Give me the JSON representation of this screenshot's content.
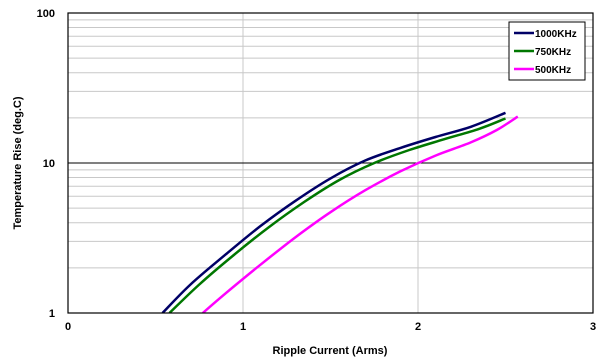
{
  "chart_data": {
    "type": "line",
    "title": "",
    "xlabel": "Ripple Current (Arms)",
    "ylabel": "Temperature Rise (deg.C)",
    "xlim": [
      0,
      3
    ],
    "ylim": [
      1,
      100
    ],
    "yscale": "log",
    "grid": true,
    "legend_position": "top-right",
    "x_ticks": [
      "0",
      "1",
      "2",
      "3"
    ],
    "y_ticks": [
      "1",
      "10",
      "100"
    ],
    "series": [
      {
        "name": "1000KHz",
        "color": "#000066",
        "points": [
          [
            0.54,
            1.0
          ],
          [
            0.7,
            1.55
          ],
          [
            0.9,
            2.45
          ],
          [
            1.1,
            3.8
          ],
          [
            1.3,
            5.6
          ],
          [
            1.5,
            7.9
          ],
          [
            1.7,
            10.4
          ],
          [
            1.9,
            12.6
          ],
          [
            2.1,
            14.9
          ],
          [
            2.3,
            17.4
          ],
          [
            2.5,
            21.6
          ]
        ]
      },
      {
        "name": "750KHz",
        "color": "#007700",
        "points": [
          [
            0.58,
            1.0
          ],
          [
            0.75,
            1.55
          ],
          [
            0.95,
            2.45
          ],
          [
            1.15,
            3.75
          ],
          [
            1.35,
            5.5
          ],
          [
            1.55,
            7.7
          ],
          [
            1.75,
            10.0
          ],
          [
            1.95,
            12.2
          ],
          [
            2.15,
            14.4
          ],
          [
            2.35,
            16.9
          ],
          [
            2.5,
            19.8
          ]
        ]
      },
      {
        "name": "500KHz",
        "color": "#ff00ff",
        "points": [
          [
            0.77,
            1.0
          ],
          [
            0.9,
            1.35
          ],
          [
            1.1,
            2.1
          ],
          [
            1.3,
            3.2
          ],
          [
            1.5,
            4.7
          ],
          [
            1.7,
            6.6
          ],
          [
            1.9,
            8.8
          ],
          [
            2.1,
            11.2
          ],
          [
            2.3,
            13.7
          ],
          [
            2.45,
            16.6
          ],
          [
            2.57,
            20.4
          ]
        ]
      }
    ]
  }
}
